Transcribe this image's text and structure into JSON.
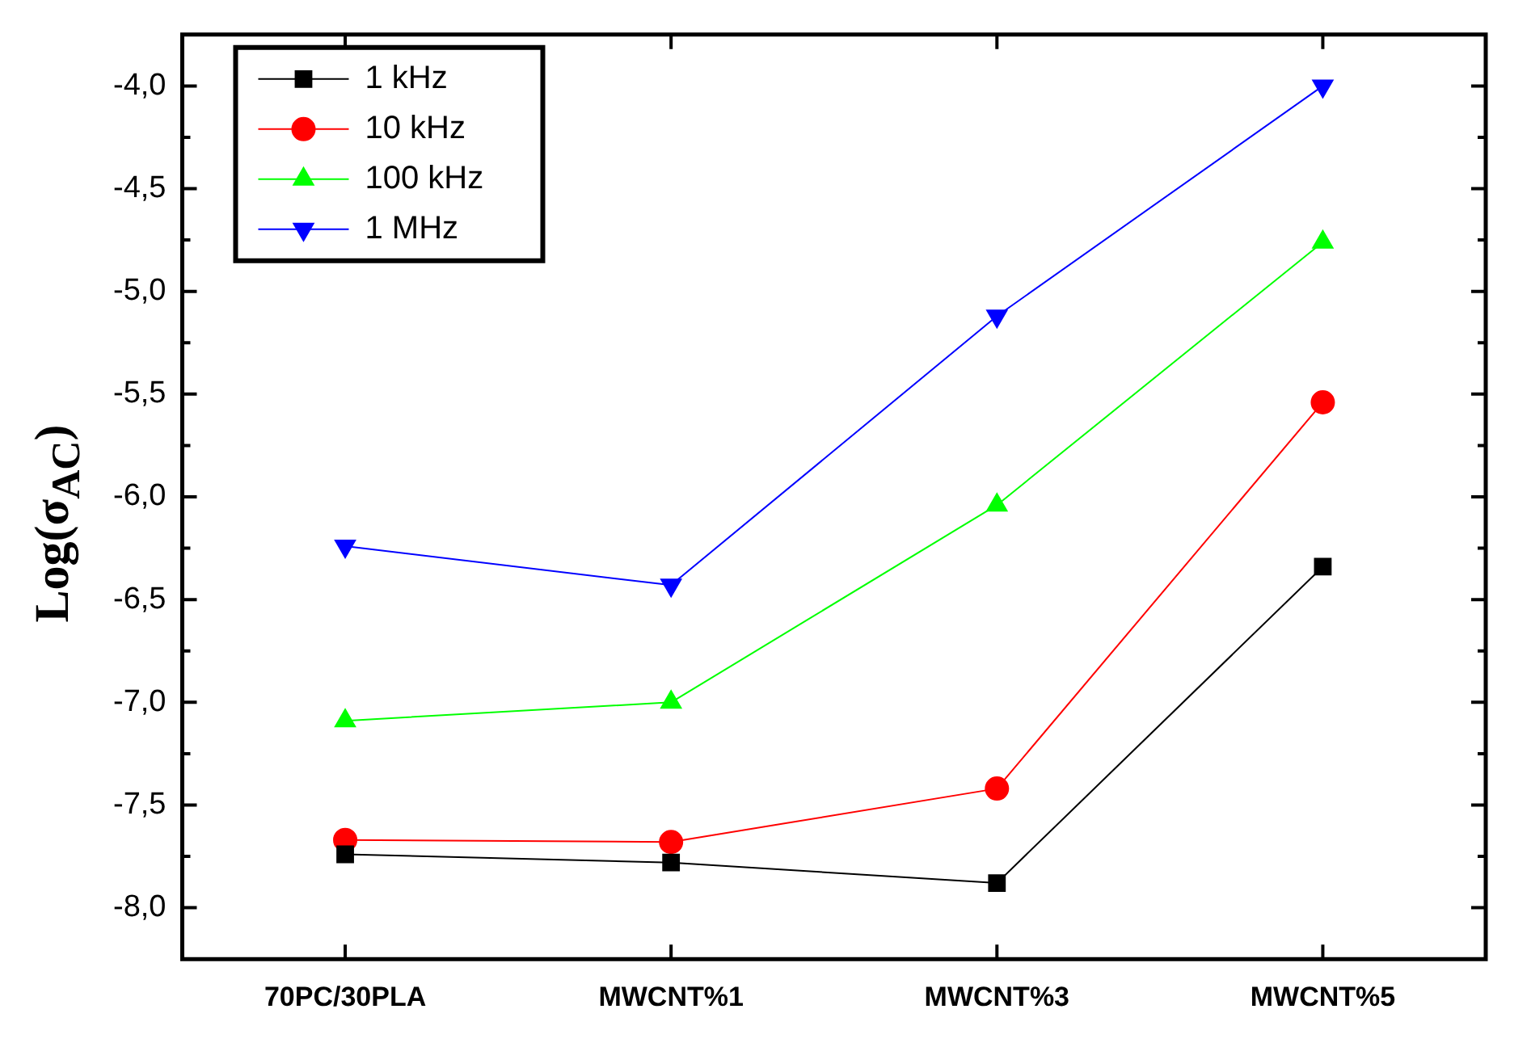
{
  "chart_data": {
    "type": "line",
    "ylabel": "Log(σ$_{AC}$)",
    "categories": [
      "70PC/30PLA",
      "MWCNT%1",
      "MWCNT%3",
      "MWCNT%5"
    ],
    "series": [
      {
        "name": "1 kHz",
        "color": "#000000",
        "marker": "square",
        "values": [
          -7.74,
          -7.78,
          -7.88,
          -6.34
        ]
      },
      {
        "name": "10 kHz",
        "color": "#ff0000",
        "marker": "circle",
        "values": [
          -7.67,
          -7.68,
          -7.42,
          -5.54
        ]
      },
      {
        "name": "100 kHz",
        "color": "#00ff00",
        "marker": "triangle",
        "values": [
          -7.09,
          -7.0,
          -6.04,
          -4.76
        ]
      },
      {
        "name": "1 MHz",
        "color": "#0000ff",
        "marker": "triangle-down",
        "values": [
          -6.24,
          -6.43,
          -5.12,
          -4.0
        ]
      }
    ],
    "ylim": [
      -8.25,
      -3.75
    ],
    "yticks": [
      {
        "value": -8,
        "label": "-8,0"
      },
      {
        "value": -7.5,
        "label": "-7,5"
      },
      {
        "value": -7,
        "label": "-7,0"
      },
      {
        "value": -6.5,
        "label": "-6,5"
      },
      {
        "value": -6,
        "label": "-6,0"
      },
      {
        "value": -5.5,
        "label": "-5,5"
      },
      {
        "value": -5,
        "label": "-5,0"
      },
      {
        "value": -4.5,
        "label": "-4,5"
      },
      {
        "value": -4,
        "label": "-4,0"
      }
    ],
    "grid": false,
    "legend": "top left",
    "line_style": "solid"
  }
}
